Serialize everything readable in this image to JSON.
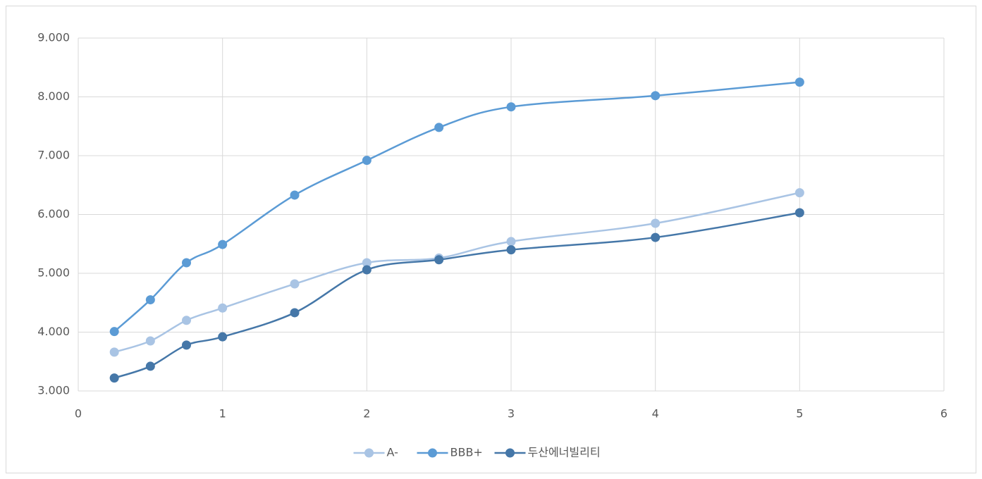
{
  "chart_data": {
    "type": "line",
    "x": [
      0.25,
      0.5,
      0.75,
      1,
      1.5,
      2,
      2.5,
      3,
      4,
      5
    ],
    "series": [
      {
        "name": "A-",
        "color": "#a9c4e4",
        "values": [
          3.66,
          3.85,
          4.2,
          4.41,
          4.82,
          5.18,
          5.26,
          5.54,
          5.85,
          6.37
        ]
      },
      {
        "name": "BBB+",
        "color": "#5b9bd5",
        "values": [
          4.01,
          4.55,
          5.18,
          5.49,
          6.33,
          6.92,
          7.48,
          7.83,
          8.02,
          8.25
        ]
      },
      {
        "name": "두산에너빌리티",
        "color": "#4577a8",
        "values": [
          3.22,
          3.42,
          3.78,
          3.92,
          4.33,
          5.06,
          5.23,
          5.4,
          5.61,
          6.03
        ]
      }
    ],
    "xlim": [
      0,
      6
    ],
    "xticks": [
      0,
      1,
      2,
      3,
      4,
      5,
      6
    ],
    "ylim": [
      3,
      9
    ],
    "yticks": [
      {
        "value": 3,
        "label": "3.000"
      },
      {
        "value": 4,
        "label": "4.000"
      },
      {
        "value": 5,
        "label": "5.000"
      },
      {
        "value": 6,
        "label": "6.000"
      },
      {
        "value": 7,
        "label": "7.000"
      },
      {
        "value": 8,
        "label": "8.000"
      },
      {
        "value": 9,
        "label": "9.000"
      }
    ],
    "grid": true,
    "legend": "bottom"
  }
}
